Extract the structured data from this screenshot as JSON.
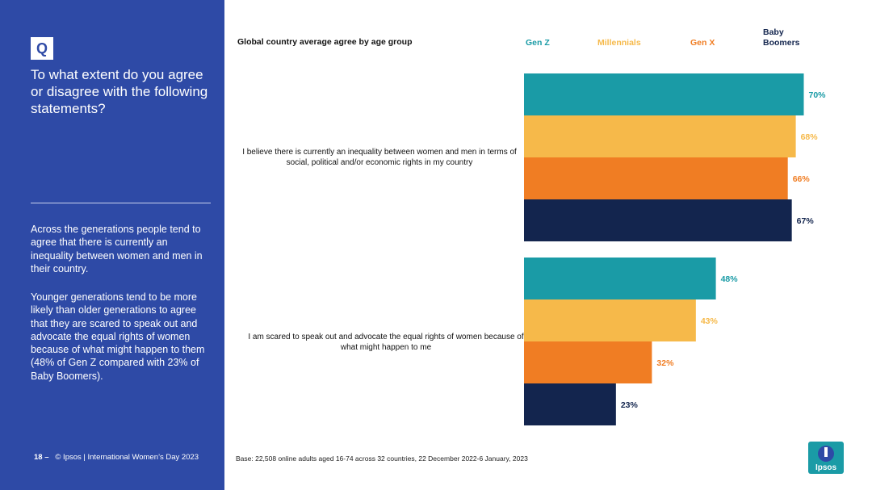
{
  "sidebar": {
    "q_badge": "Q",
    "question": "To what extent do you agree or disagree with the following statements?",
    "paragraph1": "Across the generations people tend to agree that there is currently an inequality between women and men in their country.",
    "paragraph2": "Younger generations tend to be more likely than older generations to agree that they are scared to speak out and advocate the equal rights of women because of what might happen to them (48% of Gen Z compared with 23% of Baby Boomers).",
    "page_number": "18 –",
    "footer": "© Ipsos | International Women’s Day 2023"
  },
  "base_note": "Base: 22,508 online adults aged 16-74 across 32 countries, 22 December 2022-6 January, 2023",
  "logo_text": "Ipsos",
  "colors": {
    "sidebar": "#2e4aa6",
    "gen_z": "#1a9ba6",
    "millennials": "#f6b94a",
    "gen_x": "#f07d23",
    "baby_boomers": "#13254e"
  },
  "chart_data": {
    "type": "bar",
    "orientation": "horizontal",
    "title": "Global country average agree by age group",
    "categories": [
      "I believe there is currently an inequality between women and men in terms of social, political and/or economic rights in my country",
      "I am scared to speak out and advocate the equal rights of women because of what might happen to me"
    ],
    "series": [
      {
        "name": "Gen Z",
        "values": [
          70,
          48
        ],
        "labels": [
          "70%",
          "48%"
        ]
      },
      {
        "name": "Millennials",
        "values": [
          68,
          43
        ],
        "labels": [
          "68%",
          "43%"
        ]
      },
      {
        "name": "Gen X",
        "values": [
          66,
          32
        ],
        "labels": [
          "66%",
          "32%"
        ]
      },
      {
        "name": "Baby Boomers",
        "values": [
          67,
          23
        ],
        "labels": [
          "67%",
          "23%"
        ]
      }
    ],
    "xlim": [
      0,
      100
    ],
    "unit": "%"
  }
}
